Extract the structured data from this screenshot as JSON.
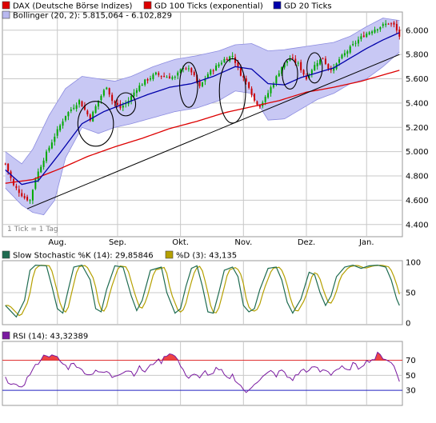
{
  "colors": {
    "candle_up": "#00aa00",
    "candle_down": "#cc0000",
    "gd100": "#dd0000",
    "gd20": "#0000aa",
    "bollinger_fill": "#c8c8f4",
    "bollinger_edge": "#8c8ce0",
    "stoch_k": "#1e6b50",
    "stoch_d": "#b5a000",
    "rsi_line": "#7a1aa0",
    "rsi_fill": "#ee4444",
    "rsi_70_line": "#e03030",
    "rsi_30_line": "#2020c0",
    "grid": "#c8c8c8",
    "frame": "#9a9a9a",
    "trendline": "#000000",
    "circle": "#000000"
  },
  "chart_data": [
    {
      "type": "candlestick",
      "panel": "price",
      "grid": true,
      "legend": [
        {
          "label": "DAX (Deutsche Börse Indizes)",
          "swatch": "#dd0000"
        },
        {
          "label": "GD 100 Ticks (exponential)",
          "swatch": "#dd0000"
        },
        {
          "label": "GD 20 Ticks",
          "swatch": "#0000aa"
        },
        {
          "label": "Bollinger (20, 2): 5.815,064 - 6.102,829",
          "swatch": "#b8b8f0"
        }
      ],
      "note": "1 Tick = 1 Tag",
      "ylim": [
        4300,
        6150
      ],
      "y_ticks": [
        "6.000",
        "5.800",
        "5.600",
        "5.400",
        "5.200",
        "5.000",
        "4.800",
        "4.600",
        "4.400"
      ],
      "y_tick_values": [
        6000,
        5800,
        5600,
        5400,
        5200,
        5000,
        4800,
        4600,
        4400
      ],
      "x_ticks": [
        "Aug.",
        "Sep.",
        "Okt.",
        "Nov.",
        "Dez.",
        "Jan."
      ],
      "x_tick_index": [
        19,
        41,
        64,
        87,
        110,
        132
      ],
      "bar_count": 145,
      "close_anchors": [
        [
          0,
          4900
        ],
        [
          3,
          4720
        ],
        [
          7,
          4620
        ],
        [
          9,
          4600
        ],
        [
          11,
          4780
        ],
        [
          14,
          4940
        ],
        [
          18,
          5130
        ],
        [
          22,
          5300
        ],
        [
          27,
          5420
        ],
        [
          31,
          5270
        ],
        [
          34,
          5420
        ],
        [
          37,
          5540
        ],
        [
          39,
          5420
        ],
        [
          42,
          5360
        ],
        [
          45,
          5420
        ],
        [
          48,
          5520
        ],
        [
          51,
          5580
        ],
        [
          55,
          5640
        ],
        [
          58,
          5620
        ],
        [
          62,
          5610
        ],
        [
          65,
          5700
        ],
        [
          68,
          5660
        ],
        [
          71,
          5530
        ],
        [
          74,
          5640
        ],
        [
          77,
          5700
        ],
        [
          80,
          5760
        ],
        [
          83,
          5790
        ],
        [
          86,
          5640
        ],
        [
          89,
          5540
        ],
        [
          91,
          5420
        ],
        [
          93,
          5380
        ],
        [
          95,
          5440
        ],
        [
          98,
          5570
        ],
        [
          101,
          5700
        ],
        [
          104,
          5770
        ],
        [
          107,
          5720
        ],
        [
          110,
          5600
        ],
        [
          112,
          5680
        ],
        [
          114,
          5740
        ],
        [
          116,
          5770
        ],
        [
          118,
          5690
        ],
        [
          120,
          5680
        ],
        [
          122,
          5760
        ],
        [
          125,
          5830
        ],
        [
          128,
          5900
        ],
        [
          131,
          5960
        ],
        [
          134,
          6000
        ],
        [
          137,
          6030
        ],
        [
          140,
          6060
        ],
        [
          142,
          6040
        ],
        [
          144,
          5950
        ]
      ],
      "gd100_anchors": [
        [
          0,
          4740
        ],
        [
          10,
          4770
        ],
        [
          20,
          4860
        ],
        [
          30,
          4960
        ],
        [
          40,
          5040
        ],
        [
          50,
          5110
        ],
        [
          60,
          5190
        ],
        [
          70,
          5250
        ],
        [
          80,
          5320
        ],
        [
          90,
          5370
        ],
        [
          100,
          5420
        ],
        [
          110,
          5490
        ],
        [
          120,
          5530
        ],
        [
          130,
          5580
        ],
        [
          144,
          5670
        ]
      ],
      "gd20_anchors": [
        [
          0,
          4850
        ],
        [
          6,
          4730
        ],
        [
          12,
          4760
        ],
        [
          20,
          4990
        ],
        [
          28,
          5230
        ],
        [
          36,
          5330
        ],
        [
          44,
          5400
        ],
        [
          52,
          5470
        ],
        [
          60,
          5530
        ],
        [
          68,
          5560
        ],
        [
          76,
          5620
        ],
        [
          84,
          5700
        ],
        [
          90,
          5680
        ],
        [
          96,
          5560
        ],
        [
          102,
          5550
        ],
        [
          108,
          5610
        ],
        [
          114,
          5650
        ],
        [
          120,
          5690
        ],
        [
          126,
          5770
        ],
        [
          132,
          5850
        ],
        [
          138,
          5920
        ],
        [
          144,
          5980
        ]
      ],
      "bollinger_upper_anchors": [
        [
          0,
          5000
        ],
        [
          6,
          4900
        ],
        [
          10,
          5020
        ],
        [
          16,
          5300
        ],
        [
          22,
          5520
        ],
        [
          28,
          5620
        ],
        [
          34,
          5600
        ],
        [
          40,
          5580
        ],
        [
          46,
          5620
        ],
        [
          54,
          5700
        ],
        [
          62,
          5760
        ],
        [
          70,
          5790
        ],
        [
          78,
          5830
        ],
        [
          84,
          5880
        ],
        [
          90,
          5890
        ],
        [
          96,
          5830
        ],
        [
          102,
          5840
        ],
        [
          108,
          5860
        ],
        [
          114,
          5880
        ],
        [
          120,
          5900
        ],
        [
          126,
          5950
        ],
        [
          132,
          6030
        ],
        [
          138,
          6100
        ],
        [
          144,
          6080
        ]
      ],
      "bollinger_lower_anchors": [
        [
          0,
          4700
        ],
        [
          6,
          4560
        ],
        [
          10,
          4500
        ],
        [
          14,
          4480
        ],
        [
          18,
          4600
        ],
        [
          22,
          4950
        ],
        [
          28,
          5200
        ],
        [
          34,
          5150
        ],
        [
          40,
          5200
        ],
        [
          46,
          5230
        ],
        [
          54,
          5280
        ],
        [
          62,
          5330
        ],
        [
          70,
          5360
        ],
        [
          78,
          5420
        ],
        [
          84,
          5500
        ],
        [
          90,
          5480
        ],
        [
          96,
          5260
        ],
        [
          102,
          5270
        ],
        [
          108,
          5350
        ],
        [
          114,
          5430
        ],
        [
          120,
          5480
        ],
        [
          126,
          5560
        ],
        [
          132,
          5600
        ],
        [
          138,
          5700
        ],
        [
          144,
          5820
        ]
      ],
      "trendline": [
        [
          8,
          4530
        ],
        [
          144,
          5800
        ]
      ],
      "ellipses": [
        {
          "center_index": 33,
          "center_value": 5230,
          "half_width_bars": 6.5,
          "half_height_value": 185
        },
        {
          "center_index": 44,
          "center_value": 5390,
          "half_width_bars": 3.6,
          "half_height_value": 95
        },
        {
          "center_index": 67,
          "center_value": 5550,
          "half_width_bars": 3.3,
          "half_height_value": 185
        },
        {
          "center_index": 83,
          "center_value": 5500,
          "half_width_bars": 4.8,
          "half_height_value": 265
        },
        {
          "center_index": 104,
          "center_value": 5640,
          "half_width_bars": 2.8,
          "half_height_value": 125
        },
        {
          "center_index": 113,
          "center_value": 5690,
          "half_width_bars": 2.8,
          "half_height_value": 125
        }
      ]
    },
    {
      "type": "line",
      "panel": "stochastic",
      "legend": [
        {
          "label": "Slow Stochastic %K (14): 29,85846",
          "swatch": "#1e6b50"
        },
        {
          "label": "%D (3): 43,135",
          "swatch": "#b5a000"
        }
      ],
      "ylim": [
        0,
        100
      ],
      "y_ticks": [
        "100",
        "50",
        "0"
      ],
      "y_tick_values": [
        100,
        50,
        0
      ],
      "k_anchors": [
        [
          0,
          30
        ],
        [
          4,
          12
        ],
        [
          7,
          38
        ],
        [
          9,
          85
        ],
        [
          11,
          93
        ],
        [
          15,
          92
        ],
        [
          17,
          60
        ],
        [
          19,
          25
        ],
        [
          21,
          18
        ],
        [
          23,
          55
        ],
        [
          25,
          90
        ],
        [
          28,
          93
        ],
        [
          31,
          70
        ],
        [
          33,
          25
        ],
        [
          35,
          20
        ],
        [
          37,
          55
        ],
        [
          40,
          92
        ],
        [
          43,
          90
        ],
        [
          46,
          45
        ],
        [
          48,
          22
        ],
        [
          50,
          38
        ],
        [
          53,
          85
        ],
        [
          57,
          90
        ],
        [
          59,
          50
        ],
        [
          62,
          18
        ],
        [
          64,
          25
        ],
        [
          66,
          60
        ],
        [
          68,
          88
        ],
        [
          70,
          92
        ],
        [
          72,
          60
        ],
        [
          74,
          20
        ],
        [
          76,
          18
        ],
        [
          78,
          50
        ],
        [
          80,
          85
        ],
        [
          83,
          90
        ],
        [
          85,
          75
        ],
        [
          87,
          30
        ],
        [
          89,
          20
        ],
        [
          91,
          25
        ],
        [
          93,
          55
        ],
        [
          96,
          88
        ],
        [
          99,
          90
        ],
        [
          101,
          70
        ],
        [
          103,
          35
        ],
        [
          105,
          18
        ],
        [
          108,
          40
        ],
        [
          111,
          82
        ],
        [
          113,
          78
        ],
        [
          115,
          50
        ],
        [
          117,
          30
        ],
        [
          119,
          45
        ],
        [
          121,
          75
        ],
        [
          124,
          90
        ],
        [
          127,
          93
        ],
        [
          130,
          88
        ],
        [
          133,
          92
        ],
        [
          136,
          93
        ],
        [
          139,
          90
        ],
        [
          141,
          70
        ],
        [
          143,
          40
        ],
        [
          144,
          30
        ]
      ],
      "d_lag": 1.5
    },
    {
      "type": "area",
      "panel": "rsi",
      "legend": [
        {
          "label": "RSI (14): 43,32389",
          "swatch": "#7a1aa0"
        }
      ],
      "ylim": [
        10,
        95
      ],
      "y_ticks": [
        "70",
        "50",
        "30"
      ],
      "y_tick_values": [
        70,
        50,
        30
      ],
      "reference_lines": [
        70,
        30
      ],
      "anchors": [
        [
          0,
          45
        ],
        [
          3,
          38
        ],
        [
          5,
          32
        ],
        [
          7,
          40
        ],
        [
          9,
          52
        ],
        [
          11,
          62
        ],
        [
          13,
          72
        ],
        [
          15,
          78
        ],
        [
          17,
          75
        ],
        [
          19,
          73
        ],
        [
          21,
          65
        ],
        [
          23,
          60
        ],
        [
          25,
          68
        ],
        [
          27,
          58
        ],
        [
          29,
          55
        ],
        [
          31,
          50
        ],
        [
          33,
          58
        ],
        [
          35,
          52
        ],
        [
          37,
          55
        ],
        [
          39,
          48
        ],
        [
          41,
          52
        ],
        [
          43,
          55
        ],
        [
          45,
          57
        ],
        [
          47,
          52
        ],
        [
          49,
          60
        ],
        [
          51,
          55
        ],
        [
          53,
          62
        ],
        [
          55,
          70
        ],
        [
          57,
          68
        ],
        [
          59,
          78
        ],
        [
          61,
          80
        ],
        [
          63,
          70
        ],
        [
          65,
          55
        ],
        [
          67,
          48
        ],
        [
          69,
          52
        ],
        [
          71,
          45
        ],
        [
          73,
          55
        ],
        [
          75,
          50
        ],
        [
          77,
          58
        ],
        [
          79,
          55
        ],
        [
          81,
          45
        ],
        [
          83,
          50
        ],
        [
          85,
          40
        ],
        [
          87,
          32
        ],
        [
          88,
          25
        ],
        [
          89,
          30
        ],
        [
          91,
          40
        ],
        [
          93,
          45
        ],
        [
          95,
          50
        ],
        [
          97,
          55
        ],
        [
          99,
          50
        ],
        [
          101,
          57
        ],
        [
          103,
          48
        ],
        [
          105,
          45
        ],
        [
          107,
          52
        ],
        [
          109,
          58
        ],
        [
          111,
          55
        ],
        [
          113,
          62
        ],
        [
          115,
          55
        ],
        [
          117,
          58
        ],
        [
          119,
          52
        ],
        [
          121,
          58
        ],
        [
          123,
          60
        ],
        [
          125,
          55
        ],
        [
          127,
          65
        ],
        [
          129,
          60
        ],
        [
          131,
          66
        ],
        [
          133,
          70
        ],
        [
          135,
          72
        ],
        [
          136,
          78
        ],
        [
          138,
          74
        ],
        [
          140,
          70
        ],
        [
          142,
          62
        ],
        [
          144,
          43
        ]
      ]
    }
  ]
}
